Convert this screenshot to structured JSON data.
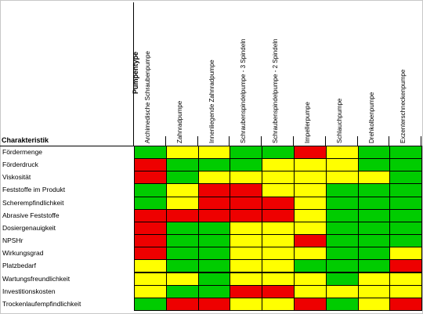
{
  "header": {
    "pump_type_label": "Pumpentype",
    "characteristic_label": "Charakteristik"
  },
  "colors": {
    "G": "#00cc00",
    "Y": "#ffff00",
    "R": "#ee0000"
  },
  "pumps": [
    "Archimedische Schraubenpumpe",
    "Zahnradpumpe",
    "Innenliegende Zahnradpumpe",
    "Schraubenspindelpumpe - 3 Spindeln",
    "Schraubenspindelpumpe - 2 Spindeln",
    "Impellerpumpe",
    "Schlauchpumpe",
    "Drehkolbenpumpe",
    "Exzenterschneckenpumpe"
  ],
  "rows": [
    {
      "label": "Fördermenge",
      "values": [
        "G",
        "Y",
        "Y",
        "G",
        "G",
        "R",
        "Y",
        "G",
        "G"
      ]
    },
    {
      "label": "Förderdruck",
      "values": [
        "R",
        "G",
        "G",
        "G",
        "Y",
        "Y",
        "Y",
        "G",
        "G"
      ]
    },
    {
      "label": "Viskosität",
      "values": [
        "R",
        "G",
        "Y",
        "Y",
        "Y",
        "Y",
        "Y",
        "Y",
        "G"
      ]
    },
    {
      "label": "Feststoffe im Produkt",
      "values": [
        "G",
        "Y",
        "R",
        "R",
        "Y",
        "Y",
        "G",
        "G",
        "G"
      ]
    },
    {
      "label": "Scherempfindlichkeit",
      "values": [
        "G",
        "Y",
        "R",
        "R",
        "R",
        "Y",
        "G",
        "G",
        "G"
      ]
    },
    {
      "label": "Abrasive Feststoffe",
      "values": [
        "R",
        "R",
        "R",
        "R",
        "R",
        "Y",
        "G",
        "G",
        "G"
      ]
    },
    {
      "label": "Dosiergenauigkeit",
      "values": [
        "R",
        "G",
        "G",
        "Y",
        "Y",
        "Y",
        "G",
        "G",
        "G"
      ]
    },
    {
      "label": "NPSHr",
      "values": [
        "R",
        "G",
        "G",
        "Y",
        "Y",
        "R",
        "G",
        "G",
        "G"
      ]
    },
    {
      "label": "Wirkungsgrad",
      "values": [
        "R",
        "G",
        "G",
        "Y",
        "Y",
        "Y",
        "G",
        "G",
        "Y"
      ]
    },
    {
      "label": "Platzbedarf",
      "values": [
        "Y",
        "G",
        "G",
        "Y",
        "Y",
        "G",
        "G",
        "G",
        "R"
      ]
    },
    {
      "label": "Wartungsfreundlichkeit",
      "values": [
        "Y",
        "Y",
        "G",
        "Y",
        "Y",
        "Y",
        "G",
        "Y",
        "Y"
      ]
    },
    {
      "label": "Investitionskosten",
      "values": [
        "Y",
        "G",
        "G",
        "R",
        "R",
        "Y",
        "Y",
        "Y",
        "Y"
      ]
    },
    {
      "label": "Trockenlaufempfindlichkeit",
      "values": [
        "G",
        "R",
        "R",
        "Y",
        "Y",
        "R",
        "G",
        "Y",
        "R"
      ]
    }
  ]
}
